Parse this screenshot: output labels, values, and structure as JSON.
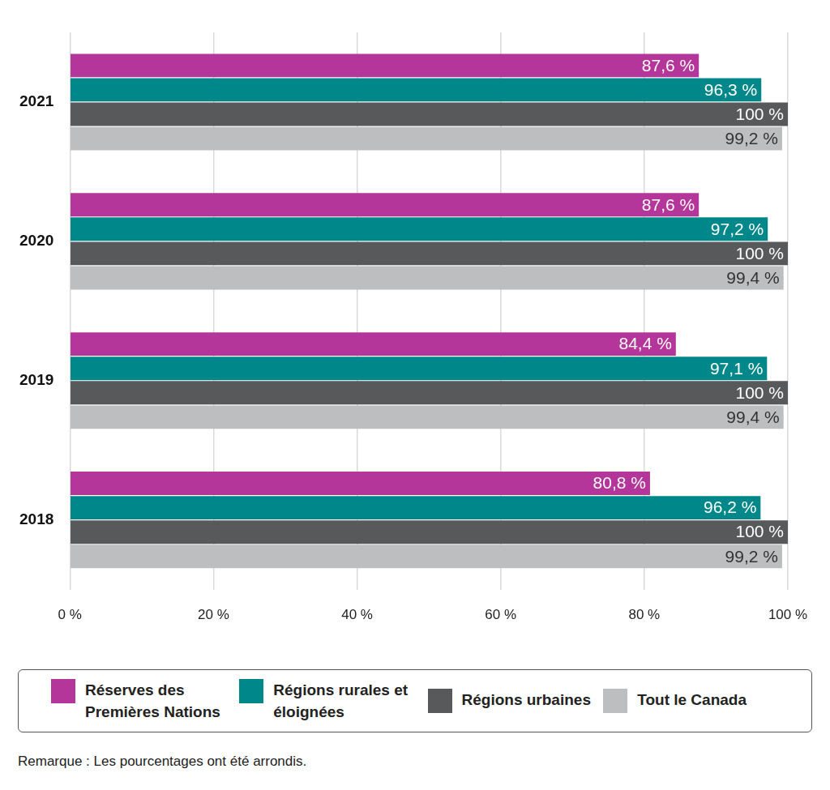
{
  "chart_data": {
    "type": "bar",
    "orientation": "horizontal",
    "categories": [
      "2021",
      "2020",
      "2019",
      "2018"
    ],
    "series": [
      {
        "name": "Réserves des Premières Nations",
        "color": "#b5369a",
        "values": [
          87.6,
          87.6,
          84.4,
          80.8
        ],
        "value_labels": [
          "87,6 %",
          "87,6 %",
          "84,4 %",
          "80,8 %"
        ]
      },
      {
        "name": "Régions rurales et éloignées",
        "color": "#00878a",
        "values": [
          96.3,
          97.2,
          97.1,
          96.2
        ],
        "value_labels": [
          "96,3 %",
          "97,2 %",
          "97,1 %",
          "96,2 %"
        ]
      },
      {
        "name": "Régions urbaines",
        "color": "#58595b",
        "values": [
          100,
          100,
          100,
          100
        ],
        "value_labels": [
          "100 %",
          "100 %",
          "100 %",
          "100 %"
        ]
      },
      {
        "name": "Tout le Canada",
        "color": "#bcbec0",
        "values": [
          99.2,
          99.4,
          99.4,
          99.2
        ],
        "value_labels": [
          "99,2 %",
          "99,4 %",
          "99,4 %",
          "99,2 %"
        ]
      }
    ],
    "xlim": [
      0,
      100
    ],
    "xticks": [
      {
        "value": 0,
        "label": "0 %"
      },
      {
        "value": 20,
        "label": "20 %"
      },
      {
        "value": 40,
        "label": "40 %"
      },
      {
        "value": 60,
        "label": "60 %"
      },
      {
        "value": 80,
        "label": "80 %"
      },
      {
        "value": 100,
        "label": "100 %"
      }
    ],
    "grid": true,
    "legend": "bottom",
    "data_labels": true,
    "annotations": [
      "Remarque : Les pourcentages ont été arrondis."
    ]
  }
}
